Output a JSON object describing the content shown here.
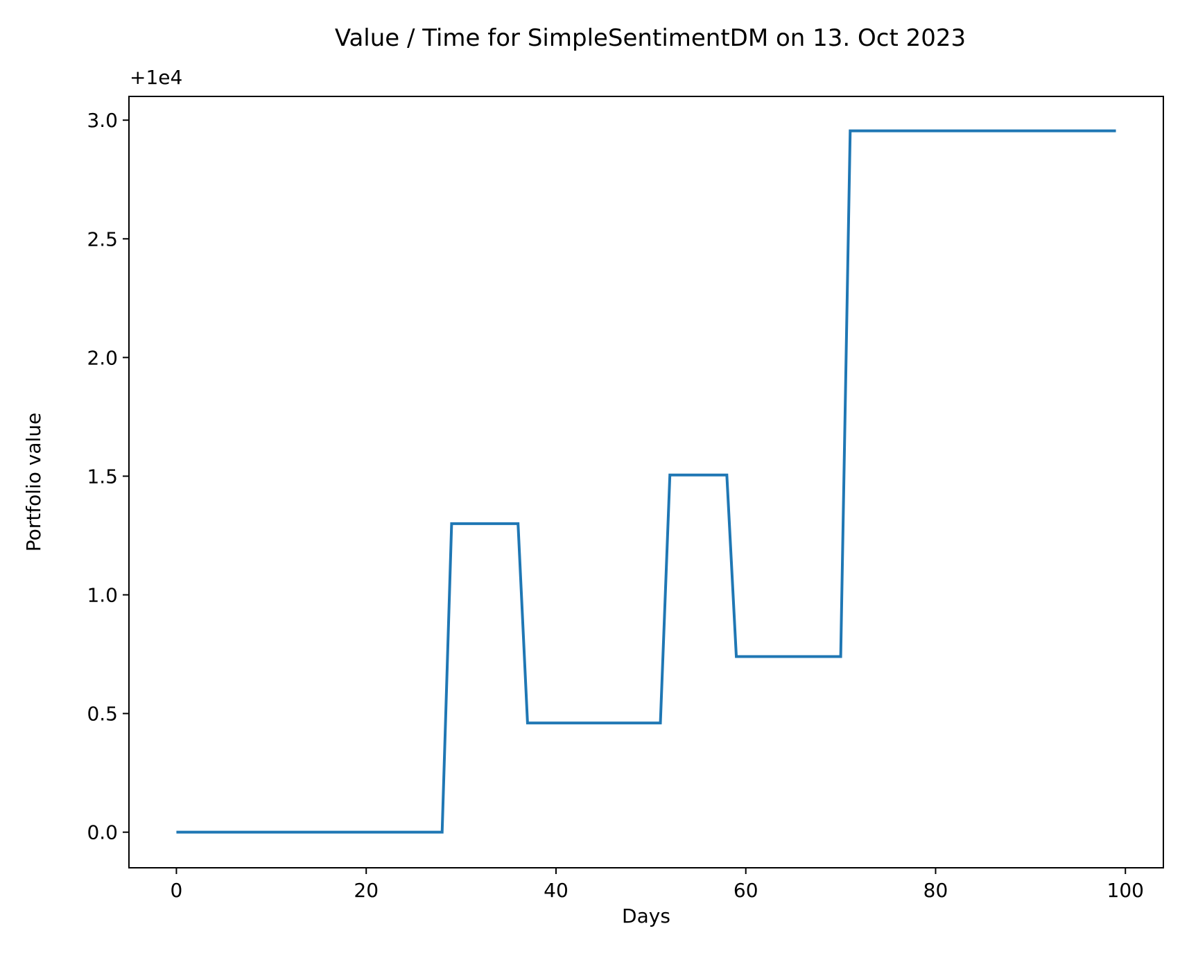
{
  "chart_data": {
    "type": "line",
    "title": "Value / Time for SimpleSentimentDM on 13. Oct 2023",
    "xlabel": "Days",
    "ylabel": "Portfolio value",
    "offset_text": "+1e4",
    "xlim": [
      -5,
      104
    ],
    "ylim": [
      -0.15,
      3.1
    ],
    "x_ticks": [
      0,
      20,
      40,
      60,
      80,
      100
    ],
    "x_tick_labels": [
      "0",
      "20",
      "40",
      "60",
      "80",
      "100"
    ],
    "y_ticks": [
      0.0,
      0.5,
      1.0,
      1.5,
      2.0,
      2.5,
      3.0
    ],
    "y_tick_labels": [
      "0.0",
      "0.5",
      "1.0",
      "1.5",
      "2.0",
      "2.5",
      "3.0"
    ],
    "grid": false,
    "series": [
      {
        "color": "#1f77b4",
        "x": [
          0,
          28,
          29,
          36,
          37,
          51,
          52,
          58,
          59,
          70,
          71,
          99
        ],
        "y": [
          0.0,
          0.0,
          1.3,
          1.3,
          0.46,
          0.46,
          1.505,
          1.505,
          0.74,
          0.74,
          2.955,
          2.955
        ]
      }
    ]
  }
}
